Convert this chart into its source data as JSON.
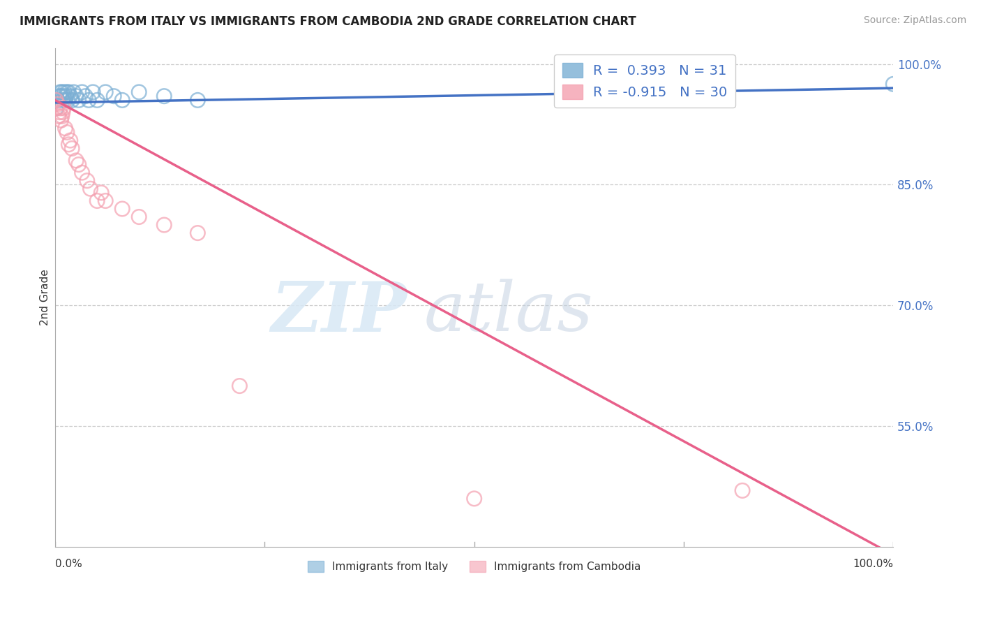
{
  "title": "IMMIGRANTS FROM ITALY VS IMMIGRANTS FROM CAMBODIA 2ND GRADE CORRELATION CHART",
  "source": "Source: ZipAtlas.com",
  "ylabel": "2nd Grade",
  "xlim": [
    0.0,
    1.0
  ],
  "ylim": [
    0.4,
    1.02
  ],
  "yticks_right": [
    1.0,
    0.85,
    0.7,
    0.55
  ],
  "ytick_labels_right": [
    "100.0%",
    "85.0%",
    "70.0%",
    "55.0%"
  ],
  "grid_color": "#cccccc",
  "background_color": "#ffffff",
  "italy_color": "#7bafd4",
  "cambodia_color": "#f4a0b0",
  "italy_line_color": "#4472c4",
  "cambodia_line_color": "#e8608a",
  "italy_R": 0.393,
  "italy_N": 31,
  "cambodia_R": -0.915,
  "cambodia_N": 30,
  "legend_R_color": "#4472c4",
  "legend_label_italy": "Immigrants from Italy",
  "legend_label_cambodia": "Immigrants from Cambodia",
  "italy_x": [
    0.001,
    0.003,
    0.005,
    0.006,
    0.007,
    0.008,
    0.009,
    0.01,
    0.011,
    0.012,
    0.013,
    0.014,
    0.015,
    0.016,
    0.018,
    0.02,
    0.022,
    0.025,
    0.028,
    0.032,
    0.036,
    0.04,
    0.045,
    0.05,
    0.06,
    0.07,
    0.08,
    0.1,
    0.13,
    0.17,
    1.0
  ],
  "italy_y": [
    0.945,
    0.955,
    0.96,
    0.965,
    0.96,
    0.965,
    0.955,
    0.96,
    0.965,
    0.955,
    0.96,
    0.965,
    0.955,
    0.965,
    0.96,
    0.955,
    0.965,
    0.96,
    0.955,
    0.965,
    0.96,
    0.955,
    0.965,
    0.955,
    0.965,
    0.96,
    0.955,
    0.965,
    0.96,
    0.955,
    0.975
  ],
  "cambodia_x": [
    0.001,
    0.002,
    0.003,
    0.004,
    0.005,
    0.006,
    0.007,
    0.008,
    0.009,
    0.01,
    0.012,
    0.014,
    0.016,
    0.018,
    0.02,
    0.025,
    0.028,
    0.032,
    0.038,
    0.042,
    0.05,
    0.055,
    0.06,
    0.08,
    0.1,
    0.13,
    0.17,
    0.22,
    0.5,
    0.82
  ],
  "cambodia_y": [
    0.955,
    0.945,
    0.95,
    0.935,
    0.94,
    0.945,
    0.93,
    0.935,
    0.94,
    0.945,
    0.92,
    0.915,
    0.9,
    0.905,
    0.895,
    0.88,
    0.875,
    0.865,
    0.855,
    0.845,
    0.83,
    0.84,
    0.83,
    0.82,
    0.81,
    0.8,
    0.79,
    0.6,
    0.46,
    0.47
  ],
  "italy_line_x": [
    0.0,
    1.0
  ],
  "italy_line_y_intercept": 0.952,
  "italy_line_slope": 0.018,
  "cambodia_line_x": [
    0.0,
    1.0
  ],
  "cambodia_line_y_intercept": 0.955,
  "cambodia_line_slope": -0.565
}
